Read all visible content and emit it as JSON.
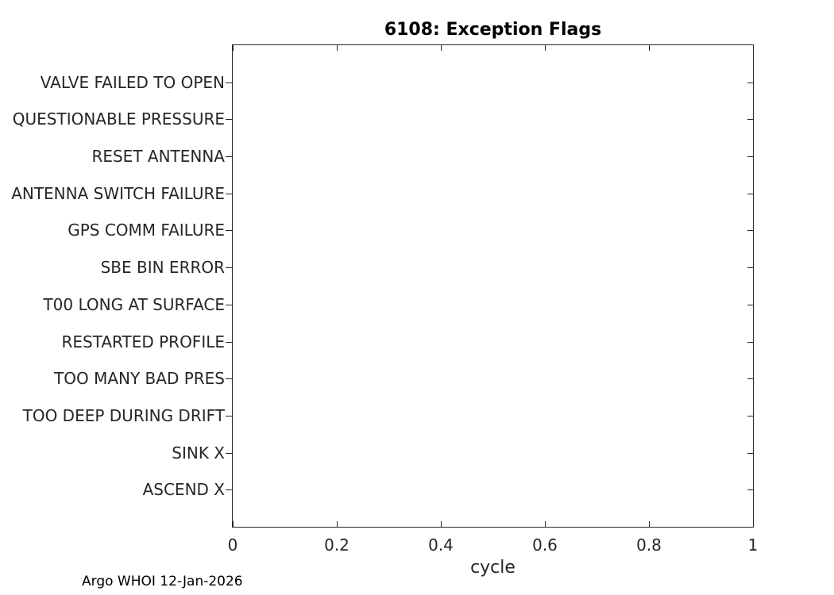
{
  "chart_data": {
    "type": "scatter",
    "title": "6108: Exception Flags",
    "xlabel": "cycle",
    "ylabel": "",
    "xlim": [
      0,
      1
    ],
    "xticks": [
      0,
      0.2,
      0.4,
      0.6,
      0.8,
      1
    ],
    "xtick_labels": [
      "0",
      "0.2",
      "0.4",
      "0.6",
      "0.8",
      "1"
    ],
    "categories": [
      "VALVE FAILED TO OPEN",
      "QUESTIONABLE PRESSURE",
      "RESET ANTENNA",
      "ANTENNA SWITCH FAILURE",
      "GPS COMM FAILURE",
      "SBE BIN ERROR",
      "T00 LONG AT SURFACE",
      "RESTARTED PROFILE",
      "TOO MANY BAD PRES",
      "TOO DEEP DURING DRIFT",
      "SINK X",
      "ASCEND X"
    ],
    "series": [],
    "grid": false,
    "legend": null,
    "layout": {
      "tick_direction_left": "out",
      "tick_direction_other": "in",
      "box": true
    },
    "footer": "Argo WHOI 12-Jan-2026",
    "colors": {
      "text": "#1a1a1a",
      "axis": "#262626",
      "background": "#ffffff"
    }
  }
}
